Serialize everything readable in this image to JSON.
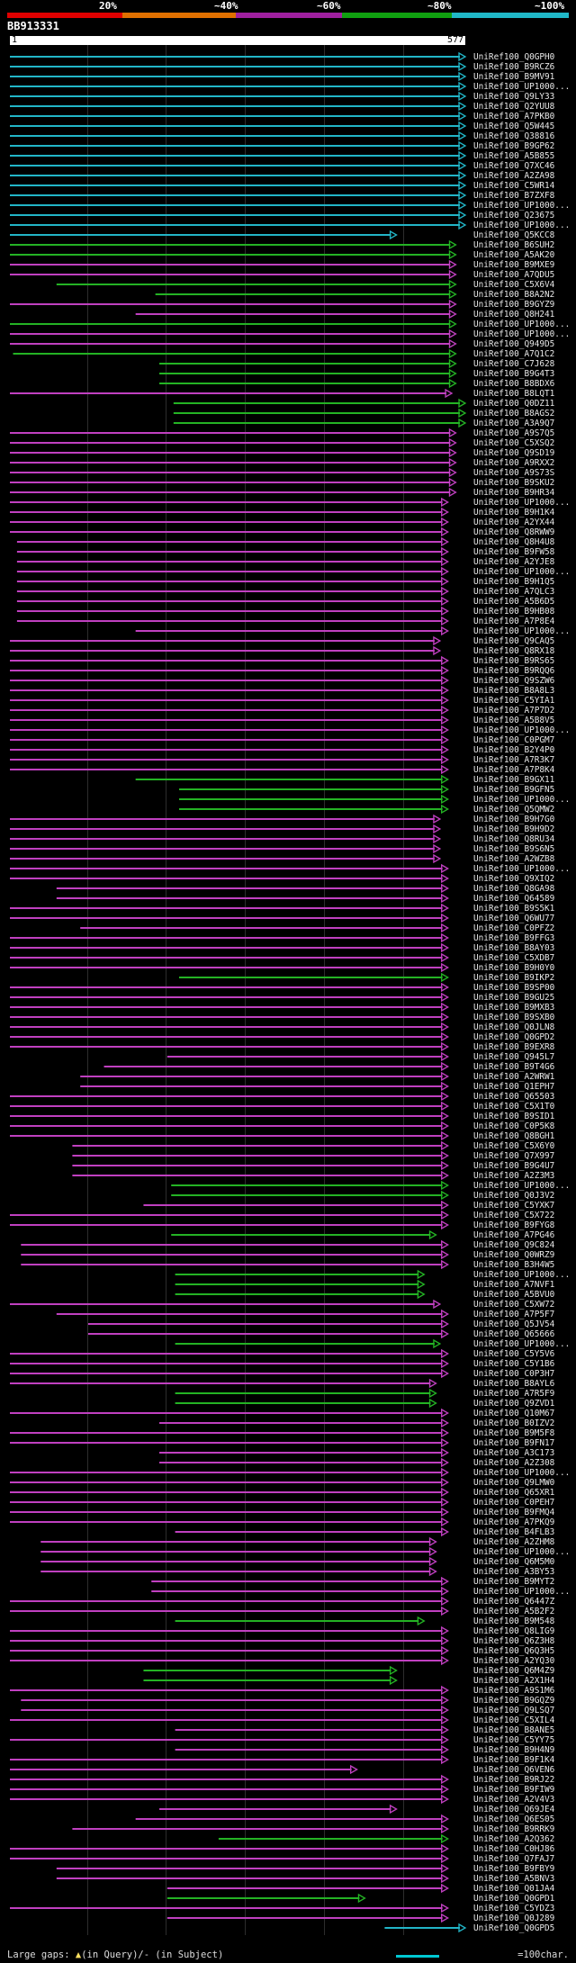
{
  "query_id": "BB913331",
  "ruler": {
    "start": "1",
    "end": "577"
  },
  "legend": [
    {
      "label": "20%",
      "color": "#e00000"
    },
    {
      "label": "~40%",
      "color": "#e08000"
    },
    {
      "label": "~60%",
      "color": "#a020a0"
    },
    {
      "label": "~80%",
      "color": "#10a010"
    },
    {
      "label": "~100%",
      "color": "#20b8c8"
    }
  ],
  "footer": {
    "large_gaps": "Large gaps:",
    "in_query": "(in Query)/",
    "dash": "-",
    "in_subject": "(in Subject)",
    "scale": "=100char."
  },
  "colors": {
    "cyan": "#22b5c7",
    "green": "#24b324",
    "magenta": "#c040c0"
  },
  "hits": [
    {
      "id": "UniRef100_Q0GPH0",
      "c": "cyan",
      "s": 1,
      "e": 577
    },
    {
      "id": "UniRef100_B9RCZ6",
      "c": "cyan",
      "s": 1,
      "e": 577
    },
    {
      "id": "UniRef100_B9MV91",
      "c": "cyan",
      "s": 1,
      "e": 577
    },
    {
      "id": "UniRef100_UP1000...",
      "c": "cyan",
      "s": 1,
      "e": 577
    },
    {
      "id": "UniRef100_Q9LY33",
      "c": "cyan",
      "s": 1,
      "e": 577
    },
    {
      "id": "UniRef100_Q2YUU8",
      "c": "cyan",
      "s": 1,
      "e": 577
    },
    {
      "id": "UniRef100_A7PKB0",
      "c": "cyan",
      "s": 1,
      "e": 577
    },
    {
      "id": "UniRef100_Q5W445",
      "c": "cyan",
      "s": 1,
      "e": 577
    },
    {
      "id": "UniRef100_Q38816",
      "c": "cyan",
      "s": 1,
      "e": 577
    },
    {
      "id": "UniRef100_B9GP62",
      "c": "cyan",
      "s": 1,
      "e": 577
    },
    {
      "id": "UniRef100_A5B855",
      "c": "cyan",
      "s": 1,
      "e": 577
    },
    {
      "id": "UniRef100_Q7XC46",
      "c": "cyan",
      "s": 1,
      "e": 577
    },
    {
      "id": "UniRef100_A2ZA98",
      "c": "cyan",
      "s": 1,
      "e": 577
    },
    {
      "id": "UniRef100_C5WR14",
      "c": "cyan",
      "s": 1,
      "e": 577
    },
    {
      "id": "UniRef100_B7ZXF8",
      "c": "cyan",
      "s": 1,
      "e": 577
    },
    {
      "id": "UniRef100_UP1000...",
      "c": "cyan",
      "s": 1,
      "e": 577
    },
    {
      "id": "UniRef100_Q23675",
      "c": "cyan",
      "s": 1,
      "e": 577
    },
    {
      "id": "UniRef100_UP1000...",
      "c": "cyan",
      "s": 1,
      "e": 577
    },
    {
      "id": "UniRef100_Q5KCC8",
      "c": "cyan",
      "s": 1,
      "e": 490
    },
    {
      "id": "UniRef100_B6SUH2",
      "c": "green",
      "s": 1,
      "e": 565
    },
    {
      "id": "UniRef100_A5AK20",
      "c": "green",
      "s": 1,
      "e": 565
    },
    {
      "id": "UniRef100_B9MXE9",
      "c": "magenta",
      "s": 1,
      "e": 565
    },
    {
      "id": "UniRef100_A7QDU5",
      "c": "magenta",
      "s": 1,
      "e": 565
    },
    {
      "id": "UniRef100_C5X6V4",
      "c": "green",
      "s": 60,
      "e": 565
    },
    {
      "id": "UniRef100_B8A2N2",
      "c": "green",
      "s": 185,
      "e": 565
    },
    {
      "id": "UniRef100_B9GYZ9",
      "c": "magenta",
      "s": 1,
      "e": 565
    },
    {
      "id": "UniRef100_Q8H241",
      "c": "magenta",
      "s": 160,
      "e": 565
    },
    {
      "id": "UniRef100_UP1000...",
      "c": "green",
      "s": 1,
      "e": 565
    },
    {
      "id": "UniRef100_UP1000...",
      "c": "magenta",
      "s": 1,
      "e": 565
    },
    {
      "id": "UniRef100_Q949D5",
      "c": "magenta",
      "s": 1,
      "e": 565
    },
    {
      "id": "UniRef100_A7Q1C2",
      "c": "green",
      "s": 5,
      "e": 565
    },
    {
      "id": "UniRef100_C7J628",
      "c": "green",
      "s": 190,
      "e": 565
    },
    {
      "id": "UniRef100_B9G4T3",
      "c": "green",
      "s": 190,
      "e": 565
    },
    {
      "id": "UniRef100_B8BDX6",
      "c": "green",
      "s": 190,
      "e": 565
    },
    {
      "id": "UniRef100_B8LQT1",
      "c": "magenta",
      "s": 1,
      "e": 560
    },
    {
      "id": "UniRef100_Q0DZ11",
      "c": "green",
      "s": 208,
      "e": 577
    },
    {
      "id": "UniRef100_B8AGS2",
      "c": "green",
      "s": 208,
      "e": 577
    },
    {
      "id": "UniRef100_A3A9Q7",
      "c": "green",
      "s": 208,
      "e": 577
    },
    {
      "id": "UniRef100_A9S7Q5",
      "c": "magenta",
      "s": 1,
      "e": 565
    },
    {
      "id": "UniRef100_C5XSQ2",
      "c": "magenta",
      "s": 1,
      "e": 565
    },
    {
      "id": "UniRef100_Q9SD19",
      "c": "magenta",
      "s": 1,
      "e": 565
    },
    {
      "id": "UniRef100_A9RXX2",
      "c": "magenta",
      "s": 1,
      "e": 565
    },
    {
      "id": "UniRef100_A9S73S",
      "c": "magenta",
      "s": 1,
      "e": 565
    },
    {
      "id": "UniRef100_B9SKU2",
      "c": "magenta",
      "s": 1,
      "e": 565
    },
    {
      "id": "UniRef100_B9HR34",
      "c": "magenta",
      "s": 1,
      "e": 565
    },
    {
      "id": "UniRef100_UP1000...",
      "c": "magenta",
      "s": 1,
      "e": 555
    },
    {
      "id": "UniRef100_B9H1K4",
      "c": "magenta",
      "s": 1,
      "e": 555
    },
    {
      "id": "UniRef100_A2YX44",
      "c": "magenta",
      "s": 1,
      "e": 555
    },
    {
      "id": "UniRef100_Q8RWW9",
      "c": "magenta",
      "s": 1,
      "e": 555
    },
    {
      "id": "UniRef100_Q8H4U8",
      "c": "magenta",
      "s": 10,
      "e": 555
    },
    {
      "id": "UniRef100_B9FW58",
      "c": "magenta",
      "s": 10,
      "e": 555
    },
    {
      "id": "UniRef100_A2YJE8",
      "c": "magenta",
      "s": 10,
      "e": 555
    },
    {
      "id": "UniRef100_UP1000...",
      "c": "magenta",
      "s": 10,
      "e": 555
    },
    {
      "id": "UniRef100_B9H1Q5",
      "c": "magenta",
      "s": 10,
      "e": 555
    },
    {
      "id": "UniRef100_A7QLC3",
      "c": "magenta",
      "s": 10,
      "e": 555
    },
    {
      "id": "UniRef100_A5B6D5",
      "c": "magenta",
      "s": 10,
      "e": 555
    },
    {
      "id": "UniRef100_B9HB08",
      "c": "magenta",
      "s": 10,
      "e": 555
    },
    {
      "id": "UniRef100_A7P8E4",
      "c": "magenta",
      "s": 10,
      "e": 555
    },
    {
      "id": "UniRef100_UP1000...",
      "c": "magenta",
      "s": 160,
      "e": 555
    },
    {
      "id": "UniRef100_Q9CAQ5",
      "c": "magenta",
      "s": 1,
      "e": 545
    },
    {
      "id": "UniRef100_Q8RX18",
      "c": "magenta",
      "s": 1,
      "e": 545
    },
    {
      "id": "UniRef100_B9RS65",
      "c": "magenta",
      "s": 1,
      "e": 555
    },
    {
      "id": "UniRef100_B9RQQ6",
      "c": "magenta",
      "s": 1,
      "e": 555
    },
    {
      "id": "UniRef100_Q9SZW6",
      "c": "magenta",
      "s": 1,
      "e": 555
    },
    {
      "id": "UniRef100_B8A8L3",
      "c": "magenta",
      "s": 1,
      "e": 555
    },
    {
      "id": "UniRef100_C5YIA1",
      "c": "magenta",
      "s": 1,
      "e": 555
    },
    {
      "id": "UniRef100_A7P7D2",
      "c": "magenta",
      "s": 1,
      "e": 555
    },
    {
      "id": "UniRef100_A5B8V5",
      "c": "magenta",
      "s": 1,
      "e": 555
    },
    {
      "id": "UniRef100_UP1000...",
      "c": "magenta",
      "s": 1,
      "e": 555
    },
    {
      "id": "UniRef100_C0PGM7",
      "c": "magenta",
      "s": 1,
      "e": 555
    },
    {
      "id": "UniRef100_B2Y4P0",
      "c": "magenta",
      "s": 1,
      "e": 555
    },
    {
      "id": "UniRef100_A7R3K7",
      "c": "magenta",
      "s": 1,
      "e": 555
    },
    {
      "id": "UniRef100_A7P8K4",
      "c": "magenta",
      "s": 1,
      "e": 555
    },
    {
      "id": "UniRef100_B9GX11",
      "c": "green",
      "s": 160,
      "e": 555
    },
    {
      "id": "UniRef100_B9GFN5",
      "c": "green",
      "s": 215,
      "e": 555
    },
    {
      "id": "UniRef100_UP1000...",
      "c": "green",
      "s": 215,
      "e": 555
    },
    {
      "id": "UniRef100_Q5QMW2",
      "c": "green",
      "s": 215,
      "e": 555
    },
    {
      "id": "UniRef100_B9H7G0",
      "c": "magenta",
      "s": 1,
      "e": 545
    },
    {
      "id": "UniRef100_B9H9D2",
      "c": "magenta",
      "s": 1,
      "e": 545
    },
    {
      "id": "UniRef100_Q8RU34",
      "c": "magenta",
      "s": 1,
      "e": 545
    },
    {
      "id": "UniRef100_B9S6N5",
      "c": "magenta",
      "s": 1,
      "e": 545
    },
    {
      "id": "UniRef100_A2WZB8",
      "c": "magenta",
      "s": 1,
      "e": 545
    },
    {
      "id": "UniRef100_UP1000...",
      "c": "magenta",
      "s": 1,
      "e": 555
    },
    {
      "id": "UniRef100_Q9XIQ2",
      "c": "magenta",
      "s": 1,
      "e": 555
    },
    {
      "id": "UniRef100_Q8GA98",
      "c": "magenta",
      "s": 60,
      "e": 555
    },
    {
      "id": "UniRef100_Q64589",
      "c": "magenta",
      "s": 60,
      "e": 555
    },
    {
      "id": "UniRef100_B9S5K1",
      "c": "magenta",
      "s": 1,
      "e": 555
    },
    {
      "id": "UniRef100_Q6WU77",
      "c": "magenta",
      "s": 1,
      "e": 555
    },
    {
      "id": "UniRef100_C0PFZ2",
      "c": "magenta",
      "s": 90,
      "e": 555
    },
    {
      "id": "UniRef100_B9FFG3",
      "c": "magenta",
      "s": 1,
      "e": 555
    },
    {
      "id": "UniRef100_B8AY03",
      "c": "magenta",
      "s": 1,
      "e": 555
    },
    {
      "id": "UniRef100_C5XDB7",
      "c": "magenta",
      "s": 1,
      "e": 555
    },
    {
      "id": "UniRef100_B9H0Y0",
      "c": "magenta",
      "s": 1,
      "e": 555
    },
    {
      "id": "UniRef100_B9IKP2",
      "c": "green",
      "s": 215,
      "e": 555
    },
    {
      "id": "UniRef100_B9SP00",
      "c": "magenta",
      "s": 1,
      "e": 555
    },
    {
      "id": "UniRef100_B9GU25",
      "c": "magenta",
      "s": 1,
      "e": 555
    },
    {
      "id": "UniRef100_B9MXB3",
      "c": "magenta",
      "s": 1,
      "e": 555
    },
    {
      "id": "UniRef100_B9SXB0",
      "c": "magenta",
      "s": 1,
      "e": 555
    },
    {
      "id": "UniRef100_Q0JLN8",
      "c": "magenta",
      "s": 1,
      "e": 555
    },
    {
      "id": "UniRef100_Q0GPD2",
      "c": "magenta",
      "s": 1,
      "e": 555
    },
    {
      "id": "UniRef100_B9EXR8",
      "c": "magenta",
      "s": 1,
      "e": 555
    },
    {
      "id": "UniRef100_Q945L7",
      "c": "magenta",
      "s": 200,
      "e": 555
    },
    {
      "id": "UniRef100_B9T4G6",
      "c": "magenta",
      "s": 120,
      "e": 555
    },
    {
      "id": "UniRef100_A2WRW1",
      "c": "magenta",
      "s": 90,
      "e": 555
    },
    {
      "id": "UniRef100_Q1EPH7",
      "c": "magenta",
      "s": 90,
      "e": 555
    },
    {
      "id": "UniRef100_Q65503",
      "c": "magenta",
      "s": 1,
      "e": 555
    },
    {
      "id": "UniRef100_C5X1T0",
      "c": "magenta",
      "s": 1,
      "e": 555
    },
    {
      "id": "UniRef100_B9SID1",
      "c": "magenta",
      "s": 1,
      "e": 555
    },
    {
      "id": "UniRef100_C0P5K8",
      "c": "magenta",
      "s": 1,
      "e": 555
    },
    {
      "id": "UniRef100_Q8BGH1",
      "c": "magenta",
      "s": 1,
      "e": 555
    },
    {
      "id": "UniRef100_C5X6Y0",
      "c": "magenta",
      "s": 80,
      "e": 555
    },
    {
      "id": "UniRef100_Q7X997",
      "c": "magenta",
      "s": 80,
      "e": 555
    },
    {
      "id": "UniRef100_B9G4U7",
      "c": "magenta",
      "s": 80,
      "e": 555
    },
    {
      "id": "UniRef100_A2Z3M3",
      "c": "magenta",
      "s": 80,
      "e": 555
    },
    {
      "id": "UniRef100_UP1000...",
      "c": "green",
      "s": 205,
      "e": 555
    },
    {
      "id": "UniRef100_Q0J3V2",
      "c": "green",
      "s": 205,
      "e": 555
    },
    {
      "id": "UniRef100_C5YXK7",
      "c": "magenta",
      "s": 170,
      "e": 555
    },
    {
      "id": "UniRef100_C5X722",
      "c": "magenta",
      "s": 1,
      "e": 555
    },
    {
      "id": "UniRef100_B9FYG8",
      "c": "magenta",
      "s": 1,
      "e": 555
    },
    {
      "id": "UniRef100_A7PG46",
      "c": "green",
      "s": 205,
      "e": 540
    },
    {
      "id": "UniRef100_Q9C824",
      "c": "magenta",
      "s": 15,
      "e": 555
    },
    {
      "id": "UniRef100_Q0WRZ9",
      "c": "magenta",
      "s": 15,
      "e": 555
    },
    {
      "id": "UniRef100_B3H4W5",
      "c": "magenta",
      "s": 15,
      "e": 555
    },
    {
      "id": "UniRef100_UP1000...",
      "c": "green",
      "s": 210,
      "e": 525
    },
    {
      "id": "UniRef100_A7NVF1",
      "c": "green",
      "s": 210,
      "e": 525
    },
    {
      "id": "UniRef100_A5BVU0",
      "c": "green",
      "s": 210,
      "e": 525
    },
    {
      "id": "UniRef100_C5XW72",
      "c": "magenta",
      "s": 1,
      "e": 545
    },
    {
      "id": "UniRef100_A7P5F7",
      "c": "magenta",
      "s": 60,
      "e": 555
    },
    {
      "id": "UniRef100_Q5JV54",
      "c": "magenta",
      "s": 100,
      "e": 555
    },
    {
      "id": "UniRef100_Q65666",
      "c": "magenta",
      "s": 100,
      "e": 555
    },
    {
      "id": "UniRef100_UP1000...",
      "c": "green",
      "s": 210,
      "e": 545
    },
    {
      "id": "UniRef100_C5Y5V6",
      "c": "magenta",
      "s": 1,
      "e": 555
    },
    {
      "id": "UniRef100_C5Y1B6",
      "c": "magenta",
      "s": 1,
      "e": 555
    },
    {
      "id": "UniRef100_C0P3H7",
      "c": "magenta",
      "s": 1,
      "e": 555
    },
    {
      "id": "UniRef100_B8AYL6",
      "c": "magenta",
      "s": 1,
      "e": 540
    },
    {
      "id": "UniRef100_A7R5F9",
      "c": "green",
      "s": 210,
      "e": 540
    },
    {
      "id": "UniRef100_Q9ZVD1",
      "c": "green",
      "s": 210,
      "e": 540
    },
    {
      "id": "UniRef100_Q10M67",
      "c": "magenta",
      "s": 1,
      "e": 555
    },
    {
      "id": "UniRef100_B0IZV2",
      "c": "magenta",
      "s": 190,
      "e": 555
    },
    {
      "id": "UniRef100_B9M5F8",
      "c": "magenta",
      "s": 1,
      "e": 555
    },
    {
      "id": "UniRef100_B9FN17",
      "c": "magenta",
      "s": 1,
      "e": 555
    },
    {
      "id": "UniRef100_A3C173",
      "c": "magenta",
      "s": 190,
      "e": 555
    },
    {
      "id": "UniRef100_A2Z308",
      "c": "magenta",
      "s": 190,
      "e": 555
    },
    {
      "id": "UniRef100_UP1000...",
      "c": "magenta",
      "s": 1,
      "e": 555
    },
    {
      "id": "UniRef100_Q9LMW0",
      "c": "magenta",
      "s": 1,
      "e": 555
    },
    {
      "id": "UniRef100_Q65XR1",
      "c": "magenta",
      "s": 1,
      "e": 555
    },
    {
      "id": "UniRef100_C0PEH7",
      "c": "magenta",
      "s": 1,
      "e": 555
    },
    {
      "id": "UniRef100_B9FMQ4",
      "c": "magenta",
      "s": 1,
      "e": 555
    },
    {
      "id": "UniRef100_A7PKQ9",
      "c": "magenta",
      "s": 1,
      "e": 555
    },
    {
      "id": "UniRef100_B4FLB3",
      "c": "magenta",
      "s": 210,
      "e": 555
    },
    {
      "id": "UniRef100_A2ZHM8",
      "c": "magenta",
      "s": 40,
      "e": 540
    },
    {
      "id": "UniRef100_UP1000...",
      "c": "magenta",
      "s": 40,
      "e": 540
    },
    {
      "id": "UniRef100_Q6M5M0",
      "c": "magenta",
      "s": 40,
      "e": 540
    },
    {
      "id": "UniRef100_A3BY53",
      "c": "magenta",
      "s": 40,
      "e": 540
    },
    {
      "id": "UniRef100_B9MYT2",
      "c": "magenta",
      "s": 180,
      "e": 555
    },
    {
      "id": "UniRef100_UP1000...",
      "c": "magenta",
      "s": 180,
      "e": 555
    },
    {
      "id": "UniRef100_Q6447Z",
      "c": "magenta",
      "s": 1,
      "e": 555
    },
    {
      "id": "UniRef100_A5B2F2",
      "c": "magenta",
      "s": 1,
      "e": 555
    },
    {
      "id": "UniRef100_B9M548",
      "c": "green",
      "s": 210,
      "e": 525
    },
    {
      "id": "UniRef100_Q8LIG9",
      "c": "magenta",
      "s": 1,
      "e": 555
    },
    {
      "id": "UniRef100_Q6Z3H8",
      "c": "magenta",
      "s": 1,
      "e": 555
    },
    {
      "id": "UniRef100_Q6Q3H5",
      "c": "magenta",
      "s": 1,
      "e": 555
    },
    {
      "id": "UniRef100_A2YQ30",
      "c": "magenta",
      "s": 1,
      "e": 555
    },
    {
      "id": "UniRef100_Q6M4Z9",
      "c": "green",
      "s": 170,
      "e": 490
    },
    {
      "id": "UniRef100_A2X1H4",
      "c": "green",
      "s": 170,
      "e": 490
    },
    {
      "id": "UniRef100_A9S1M6",
      "c": "magenta",
      "s": 1,
      "e": 555
    },
    {
      "id": "UniRef100_B9GQZ9",
      "c": "magenta",
      "s": 15,
      "e": 555
    },
    {
      "id": "UniRef100_Q9LSQ7",
      "c": "magenta",
      "s": 15,
      "e": 555
    },
    {
      "id": "UniRef100_C5XIL4",
      "c": "magenta",
      "s": 1,
      "e": 555
    },
    {
      "id": "UniRef100_B8ANE5",
      "c": "magenta",
      "s": 210,
      "e": 555
    },
    {
      "id": "UniRef100_C5YY75",
      "c": "magenta",
      "s": 1,
      "e": 555
    },
    {
      "id": "UniRef100_B9H4N9",
      "c": "magenta",
      "s": 210,
      "e": 555
    },
    {
      "id": "UniRef100_B9F1K4",
      "c": "magenta",
      "s": 1,
      "e": 555
    },
    {
      "id": "UniRef100_Q6VEN6",
      "c": "magenta",
      "s": 1,
      "e": 440
    },
    {
      "id": "UniRef100_B9RJ22",
      "c": "magenta",
      "s": 1,
      "e": 555
    },
    {
      "id": "UniRef100_B9FIW9",
      "c": "magenta",
      "s": 1,
      "e": 555
    },
    {
      "id": "UniRef100_A2V4V3",
      "c": "magenta",
      "s": 1,
      "e": 555
    },
    {
      "id": "UniRef100_Q69JE4",
      "c": "magenta",
      "s": 190,
      "e": 490
    },
    {
      "id": "UniRef100_Q6ES05",
      "c": "magenta",
      "s": 160,
      "e": 555
    },
    {
      "id": "UniRef100_B9RRK9",
      "c": "magenta",
      "s": 80,
      "e": 555
    },
    {
      "id": "UniRef100_A2Q362",
      "c": "green",
      "s": 265,
      "e": 555
    },
    {
      "id": "UniRef100_C0HJ86",
      "c": "magenta",
      "s": 1,
      "e": 555
    },
    {
      "id": "UniRef100_Q7FAJ7",
      "c": "magenta",
      "s": 1,
      "e": 555
    },
    {
      "id": "UniRef100_B9FBY9",
      "c": "magenta",
      "s": 60,
      "e": 555
    },
    {
      "id": "UniRef100_A5BNV3",
      "c": "magenta",
      "s": 60,
      "e": 555
    },
    {
      "id": "UniRef100_Q01JA4",
      "c": "magenta",
      "s": 200,
      "e": 555
    },
    {
      "id": "UniRef100_Q0GPD1",
      "c": "green",
      "s": 200,
      "e": 450
    },
    {
      "id": "UniRef100_C5YDZ3",
      "c": "magenta",
      "s": 1,
      "e": 555
    },
    {
      "id": "UniRef100_Q0J289",
      "c": "magenta",
      "s": 200,
      "e": 555
    },
    {
      "id": "UniRef100_Q0GPD5",
      "c": "cyan",
      "s": 475,
      "e": 577
    }
  ]
}
